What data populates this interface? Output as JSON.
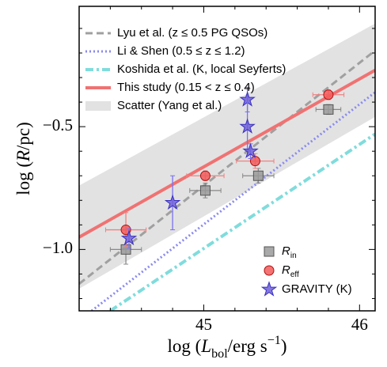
{
  "chart_data": {
    "type": "scatter",
    "y_label": [
      {
        "text": "log ("
      },
      {
        "text": "R",
        "italic": true
      },
      {
        "text": "/pc)"
      }
    ],
    "x_label": [
      {
        "text": "log ("
      },
      {
        "text": "L",
        "italic": true
      },
      {
        "text": "bol",
        "sub": true
      },
      {
        "text": "/erg s"
      },
      {
        "text": "−1",
        "sup": true
      },
      {
        "text": ")"
      }
    ],
    "xlim": [
      44.2,
      46.1
    ],
    "ylim": [
      -1.25,
      -0.01
    ],
    "xticks": [
      45,
      46
    ],
    "yticks": [
      {
        "value": -1.0,
        "label": "−1.0"
      },
      {
        "value": -0.5,
        "label": "−0.5"
      }
    ],
    "xminorticks": [
      44.2,
      44.4,
      44.6,
      44.8,
      45.2,
      45.4,
      45.6,
      45.8
    ],
    "yminorticks": [
      -1.2,
      -1.1,
      -0.9,
      -0.8,
      -0.7,
      -0.6,
      -0.4,
      -0.3,
      -0.2,
      -0.1
    ],
    "lines": [
      {
        "name": "Lyu et al. (z ≤ 0.5 PG QSOs)",
        "color": "#a0a0a0",
        "dash": "9,5",
        "width": 3,
        "x": [
          44.2,
          46.1
        ],
        "values": [
          -1.14,
          -0.19
        ]
      },
      {
        "name": "Li & Shen (0.5 ≤ z ≤ 1.2)",
        "color": "#8a8af0",
        "dash": "2,3",
        "width": 3,
        "x": [
          44.28,
          46.1
        ],
        "values": [
          -1.25,
          -0.36
        ]
      },
      {
        "name": "Koshida et al. (K, local Seyferts)",
        "color": "#80dcdc",
        "dash": "10,4,3,4",
        "width": 4,
        "x": [
          44.4,
          46.1
        ],
        "values": [
          -1.25,
          -0.53
        ]
      },
      {
        "name": "This study (0.15 < z ≤ 0.4)",
        "color": "#f07272",
        "dash": "none",
        "width": 4,
        "x": [
          44.2,
          46.1
        ],
        "values": [
          -0.95,
          -0.27
        ]
      }
    ],
    "band": {
      "name": "Scatter (Yang et al.)",
      "color": "#e2e2e2",
      "x": [
        44.2,
        46.1
      ],
      "upper": [
        -0.74,
        -0.08
      ],
      "lower": [
        -1.16,
        -0.46
      ]
    },
    "series": [
      {
        "name": "R",
        "subscript": "in",
        "marker": "square",
        "color": "#9a9a9a",
        "edge": "#555555",
        "bar_color": "#888888",
        "x": [
          44.5,
          45.01,
          45.35,
          45.8
        ],
        "values": [
          -1.0,
          -0.76,
          -0.7,
          -0.43
        ],
        "xerr": [
          0.1,
          0.1,
          0.1,
          0.08
        ],
        "yerr": [
          0.06,
          0.03,
          0.03,
          0.02
        ]
      },
      {
        "name": "R",
        "subscript": "eff",
        "marker": "circle",
        "color": "#f25a5a",
        "edge": "#b01010",
        "bar_color": "#f08080",
        "x": [
          44.5,
          45.01,
          45.33,
          45.8
        ],
        "values": [
          -0.92,
          -0.7,
          -0.64,
          -0.37
        ],
        "xerr": [
          0.13,
          0.12,
          0.12,
          0.1
        ],
        "yerr": [
          0.07,
          0.02,
          0.03,
          0.02
        ]
      },
      {
        "name": "GRAVITY (K)",
        "marker": "star",
        "color": "#7060d8",
        "edge": "#3a30c0",
        "bar_color": "#7a70f0",
        "x": [
          44.52,
          44.8,
          45.28,
          45.28,
          45.3
        ],
        "values": [
          -0.955,
          -0.81,
          -0.39,
          -0.5,
          -0.6
        ],
        "yerr": [
          0.04,
          0.11,
          0.05,
          0.1,
          0.03
        ]
      }
    ]
  }
}
